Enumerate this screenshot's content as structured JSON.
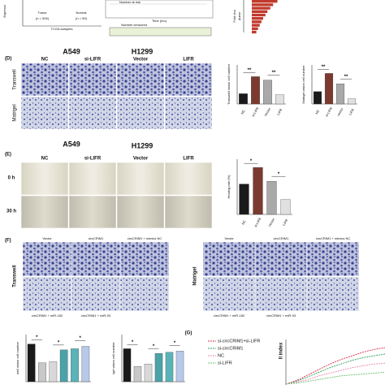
{
  "panel_c": {
    "y_label": "Expressi",
    "groups": [
      {
        "name": "Tumor",
        "n": "(n = 526)"
      },
      {
        "name": "Normal",
        "n": "(n = 59)"
      }
    ],
    "x_label": "TCGA samples",
    "risk_title": "Number at risk",
    "censored_title": "Number censored",
    "time_label": "Time (mo)",
    "fold_label": "Fold cha",
    "fold_label_2": "(tumo"
  },
  "panel_d": {
    "label": "(D)",
    "cell_lines": [
      "A549",
      "H1299"
    ],
    "groups": [
      "NC",
      "si-LIFR",
      "Vector",
      "LIFR"
    ],
    "rows": [
      "Transwell",
      "Matrigel"
    ]
  },
  "panel_e": {
    "label": "(E)",
    "cell_lines": [
      "A549",
      "H1299"
    ],
    "groups": [
      "NC",
      "si-LIFR",
      "Vector",
      "LIFR"
    ],
    "rows": [
      "0 h",
      "30 h"
    ]
  },
  "panel_f": {
    "label": "(F)",
    "blocks": [
      {
        "title": "Transwell",
        "top": [
          "Vector",
          "circCRIM1",
          "circCRIM1 + mimics NC"
        ],
        "bottom": [
          "circCRIM1 + miR-182",
          "circCRIM1 + miR-93"
        ]
      },
      {
        "title": "Matrigel",
        "top": [
          "Vector",
          "circCRIM1",
          "circCRIM1 + mimics NC"
        ],
        "bottom": [
          "circCRIM1 + miR-182",
          "circCRIM1 + miR-93"
        ]
      }
    ]
  },
  "panel_g": {
    "label": "(G)"
  },
  "chart_data": [
    {
      "type": "bar",
      "y_label": "Transwell vision cell number",
      "categories": [
        "NC",
        "si-LIFR",
        "Vector",
        "LIFR"
      ],
      "values": [
        210,
        560,
        490,
        190
      ],
      "colors": [
        "#1a1a1a",
        "#7b3a30",
        "#a9a9a9",
        "#e0e0e0"
      ],
      "ylim": [
        0,
        800
      ],
      "annotations": [
        "**",
        "**"
      ]
    },
    {
      "type": "bar",
      "y_label": "Matrigel vision cell number",
      "categories": [
        "NC",
        "si-LIFR",
        "vector",
        "LIFR"
      ],
      "values": [
        190,
        470,
        310,
        80
      ],
      "colors": [
        "#1a1a1a",
        "#7b3a30",
        "#a9a9a9",
        "#e0e0e0"
      ],
      "ylim": [
        0,
        600
      ],
      "annotations": [
        "**",
        "**"
      ]
    },
    {
      "type": "bar",
      "y_label": "Healing rate (%)",
      "categories": [
        "NC",
        "si-LIFR",
        "Vector",
        "LIFR"
      ],
      "values": [
        55,
        85,
        60,
        27
      ],
      "colors": [
        "#1a1a1a",
        "#7b3a30",
        "#a9a9a9",
        "#e0e0e0"
      ],
      "ylim": [
        0,
        100
      ],
      "annotations": [
        "*",
        "*"
      ]
    },
    {
      "type": "bar",
      "y_label": "well vision cell number",
      "categories": [
        null,
        null,
        null,
        null,
        null,
        null
      ],
      "values": [
        640,
        320,
        340,
        540,
        560,
        600
      ],
      "colors": [
        "#1a1a1a",
        "#c8c8c8",
        "#d8d8d8",
        "#4aa3a8",
        "#5ab3b8",
        "#b8c8e8"
      ],
      "ylim": [
        0,
        800
      ],
      "annotations": [
        "*",
        "*",
        "*"
      ]
    },
    {
      "type": "bar",
      "y_label": "igel vision cell number",
      "categories": [
        null,
        null,
        null,
        null,
        null,
        null
      ],
      "values": [
        280,
        130,
        150,
        240,
        250,
        260
      ],
      "colors": [
        "#1a1a1a",
        "#c8c8c8",
        "#d8d8d8",
        "#4aa3a8",
        "#5ab3b8",
        "#b8c8e8"
      ],
      "ylim": [
        0,
        400
      ],
      "annotations": [
        "*",
        "*",
        "*"
      ]
    },
    {
      "type": "hbar",
      "categories": [
        null,
        null,
        null,
        null,
        null,
        null,
        null,
        null,
        null,
        null
      ],
      "values": [
        9,
        7.5,
        6.5,
        5.5,
        4.8,
        4,
        3.4,
        2.8,
        2.2,
        1.6
      ],
      "color": "#c0392b",
      "xlim": [
        0,
        10
      ]
    },
    {
      "type": "line",
      "y_label": "ll index",
      "x": [
        0,
        1,
        2,
        3,
        4,
        5,
        6,
        7,
        8,
        9
      ],
      "xlim": [
        0,
        9
      ],
      "ylim": [
        0,
        5
      ],
      "series": [
        {
          "name": "si-circCRIM1+si-LIFR",
          "color": "#d9304f",
          "values": [
            0.1,
            0.5,
            1.1,
            1.7,
            2.3,
            2.8,
            3.2,
            3.6,
            3.9,
            4.1
          ]
        },
        {
          "name": "si-circCRIM1",
          "color": "#2e9e5b",
          "values": [
            0.1,
            0.4,
            0.9,
            1.4,
            1.9,
            2.3,
            2.7,
            3.0,
            3.2,
            3.4
          ]
        },
        {
          "name": "NC",
          "color": "#e88bb0",
          "values": [
            0.1,
            0.3,
            0.6,
            1.0,
            1.3,
            1.6,
            1.9,
            2.1,
            2.3,
            2.4
          ]
        },
        {
          "name": "si-LIFR",
          "color": "#6cc06c",
          "values": [
            0.1,
            0.2,
            0.4,
            0.6,
            0.8,
            1.0,
            1.1,
            1.2,
            1.3,
            1.4
          ]
        }
      ]
    }
  ]
}
